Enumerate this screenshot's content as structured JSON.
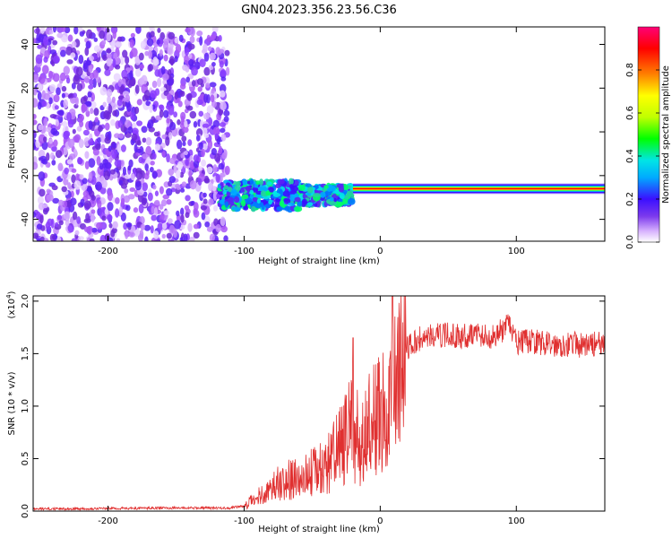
{
  "title": "GN04.2023.356.23.56.C36",
  "chart_data": [
    {
      "type": "heatmap",
      "xlabel": "Height of straight line (km)",
      "ylabel": "Frequency (Hz)",
      "xlim": [
        -255,
        165
      ],
      "ylim": [
        -50,
        48
      ],
      "xticks": [
        -200,
        -100,
        0,
        100
      ],
      "yticks": [
        -40,
        -20,
        0,
        20,
        40
      ],
      "colorbar": {
        "label": "Normalized spectral amplitude",
        "range": [
          0,
          1
        ],
        "ticks": [
          "0.0",
          "0.2",
          "0.4",
          "0.6",
          "0.8"
        ],
        "colors": [
          "#ffffff",
          "#d8b4fe",
          "#7c3aed",
          "#3b0fff",
          "#00aaff",
          "#00e5e5",
          "#00ff00",
          "#c0ff00",
          "#ffff00",
          "#ff8000",
          "#ff0000",
          "#ff0077"
        ]
      },
      "features": [
        {
          "name": "noise",
          "x": [
            -255,
            -112
          ],
          "y": [
            -50,
            48
          ],
          "amplitude": [
            0.1,
            0.3
          ]
        },
        {
          "name": "signal-band",
          "x": [
            -118,
            165
          ],
          "center_hz": -26,
          "amplitude_max": 1.0
        }
      ]
    },
    {
      "type": "line",
      "xlabel": "Height of straight line (km)",
      "ylabel": "SNR (10 * v/v)",
      "y_multiplier": "(x10",
      "y_multiplier_exp": "4",
      "y_multiplier_close": ")",
      "xlim": [
        -255,
        165
      ],
      "ylim": [
        0,
        2.05
      ],
      "xticks": [
        -200,
        -100,
        0,
        100
      ],
      "yticks": [
        "0.0",
        "0.5",
        "1.0",
        "1.5",
        "2.0"
      ],
      "color": "#e03030",
      "x": [
        -255,
        -150,
        -110,
        -100,
        -90,
        -80,
        -70,
        -60,
        -50,
        -40,
        -30,
        -20,
        -15,
        -10,
        -5,
        0,
        5,
        10,
        15,
        20,
        25,
        30,
        40,
        50,
        60,
        70,
        80,
        90,
        95,
        100,
        110,
        120,
        130,
        140,
        150,
        160,
        165
      ],
      "y": [
        0.02,
        0.03,
        0.03,
        0.05,
        0.15,
        0.25,
        0.32,
        0.35,
        0.4,
        0.5,
        0.65,
        0.9,
        0.7,
        0.8,
        1.0,
        1.05,
        1.1,
        1.3,
        1.45,
        1.55,
        1.6,
        1.65,
        1.67,
        1.68,
        1.66,
        1.7,
        1.65,
        1.72,
        1.78,
        1.6,
        1.62,
        1.6,
        1.58,
        1.6,
        1.57,
        1.6,
        1.55
      ]
    }
  ]
}
